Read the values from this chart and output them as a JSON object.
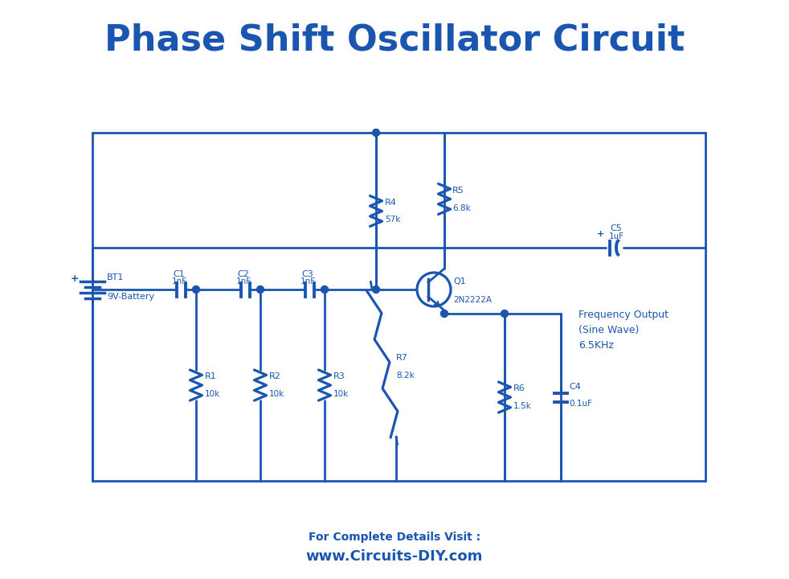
{
  "title": "Phase Shift Oscillator Circuit",
  "title_color": "#1a56b0",
  "title_fontsize": 32,
  "circuit_color": "#1a56b0",
  "line_width": 2.0,
  "bg_color": "#ffffff",
  "footer_text1": "For Complete Details Visit :",
  "footer_text2": "www.Circuits-DIY.com",
  "footer_color": "#1a56b0"
}
